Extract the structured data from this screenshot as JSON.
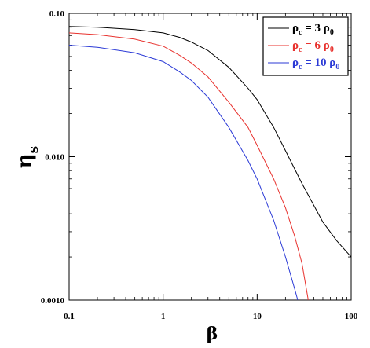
{
  "chart_data": {
    "type": "line",
    "xlabel": "β",
    "ylabel_main": "η",
    "ylabel_sub": "s",
    "x_scale": "log",
    "y_scale": "log",
    "xlim": [
      0.1,
      100
    ],
    "ylim": [
      0.001,
      0.1
    ],
    "x_ticks": [
      {
        "value": 0.1,
        "label": "0.1"
      },
      {
        "value": 1,
        "label": "1"
      },
      {
        "value": 10,
        "label": "10"
      },
      {
        "value": 100,
        "label": "100"
      }
    ],
    "y_ticks": [
      {
        "value": 0.001,
        "label": "0.0010"
      },
      {
        "value": 0.01,
        "label": "0.010"
      },
      {
        "value": 0.1,
        "label": "0.10"
      }
    ],
    "grid": false,
    "legend_position": "top-right",
    "series": [
      {
        "name": "ρc = 3 ρ0",
        "label_main": "ρ",
        "label_sub1": "c",
        "label_mid": " = 3 ρ",
        "label_sub2": "0",
        "color": "#000000",
        "x": [
          0.1,
          0.2,
          0.5,
          1,
          1.5,
          2,
          3,
          5,
          8,
          10,
          15,
          20,
          30,
          50,
          70,
          100
        ],
        "y": [
          0.081,
          0.08,
          0.077,
          0.073,
          0.068,
          0.063,
          0.055,
          0.042,
          0.03,
          0.025,
          0.016,
          0.011,
          0.0065,
          0.0035,
          0.0026,
          0.002
        ]
      },
      {
        "name": "ρc = 6 ρ0",
        "label_main": "ρ",
        "label_sub1": "c",
        "label_mid": " = 6 ρ",
        "label_sub2": "0",
        "color": "#e8322e",
        "x": [
          0.1,
          0.2,
          0.5,
          1,
          1.5,
          2,
          3,
          5,
          8,
          10,
          15,
          20,
          25,
          30,
          35
        ],
        "y": [
          0.073,
          0.071,
          0.066,
          0.059,
          0.051,
          0.045,
          0.036,
          0.024,
          0.016,
          0.012,
          0.007,
          0.0044,
          0.0028,
          0.0018,
          0.001
        ]
      },
      {
        "name": "ρc = 10 ρ0",
        "label_main": "ρ",
        "label_sub1": "c",
        "label_mid": " = 10 ρ",
        "label_sub2": "0",
        "color": "#2b3ad6",
        "x": [
          0.1,
          0.2,
          0.5,
          1,
          1.5,
          2,
          3,
          5,
          8,
          10,
          15,
          20,
          25,
          27
        ],
        "y": [
          0.06,
          0.058,
          0.053,
          0.046,
          0.039,
          0.034,
          0.026,
          0.016,
          0.0094,
          0.007,
          0.0036,
          0.002,
          0.0012,
          0.001
        ]
      }
    ]
  }
}
